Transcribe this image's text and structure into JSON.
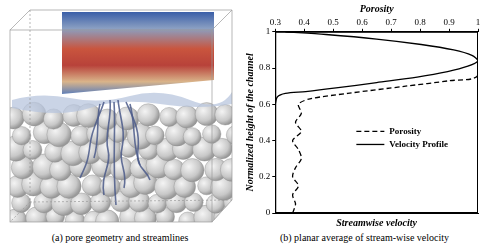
{
  "figure": {
    "captions": [
      "(a) pore geometry and streamlines",
      "(b) planar average of stream-wise velocity"
    ]
  },
  "chart_data": {
    "type": "line",
    "x_label": "Streamwise velocity",
    "x2_label": "Porosity",
    "y_label": "Normalized height of the channel",
    "xlim": [
      0,
      1
    ],
    "x2lim": [
      0.3,
      1
    ],
    "x2ticks": [
      0.3,
      0.4,
      0.5,
      0.6,
      0.7,
      0.8,
      0.9,
      1
    ],
    "ylim": [
      0,
      1
    ],
    "yticks": [
      0,
      0.2,
      0.4,
      0.6,
      0.8,
      1
    ],
    "grid": false,
    "legend": "right",
    "series": [
      {
        "name": "Porosity",
        "color": "#000000",
        "line_style": "dashed",
        "axis": "x2",
        "x": [
          0.36,
          0.37,
          0.36,
          0.38,
          0.36,
          0.37,
          0.39,
          0.38,
          0.36,
          0.39,
          0.37,
          0.39,
          0.38,
          0.42,
          0.55,
          0.75,
          0.9,
          1,
          1
        ],
        "values": [
          0,
          0.05,
          0.1,
          0.15,
          0.2,
          0.25,
          0.3,
          0.35,
          0.4,
          0.45,
          0.5,
          0.55,
          0.6,
          0.63,
          0.66,
          0.7,
          0.73,
          0.76,
          1
        ]
      },
      {
        "name": "Velocity Profile",
        "color": "#000000",
        "line_style": "solid",
        "axis": "x",
        "x": [
          0,
          0.01,
          0.05,
          0.15,
          0.3,
          0.5,
          0.7,
          0.85,
          0.95,
          1,
          0.97,
          0.88,
          0.72,
          0.5,
          0.25,
          0.05
        ],
        "values": [
          0.6,
          0.64,
          0.66,
          0.67,
          0.69,
          0.72,
          0.75,
          0.78,
          0.81,
          0.84,
          0.87,
          0.9,
          0.93,
          0.96,
          0.985,
          1
        ]
      }
    ]
  }
}
